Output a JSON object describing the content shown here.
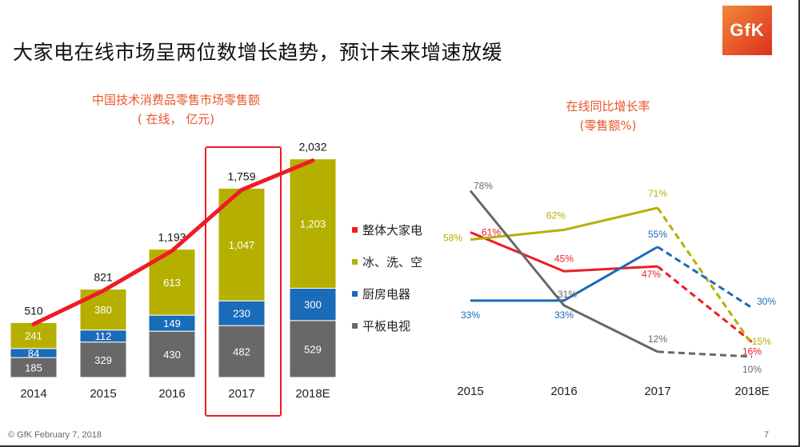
{
  "slide": {
    "title": "大家电在线市场呈两位数增长趋势，预计未来增速放缓",
    "logo_text": "GfK",
    "footer_left": "© GfK February 7, 2018",
    "page_number": "7"
  },
  "colors": {
    "total": "#ee1c25",
    "fridge_wash_ac": "#b5b000",
    "kitchen": "#1a6bb8",
    "tv": "#686868",
    "subtitle": "#e8552a"
  },
  "chart_data": [
    {
      "type": "bar",
      "stacked": true,
      "title": "中国技术消费品零售市场零售额",
      "subtitle": "( 在线， 亿元)",
      "categories": [
        "2014",
        "2015",
        "2016",
        "2017",
        "2018E"
      ],
      "series": [
        {
          "name": "平板电视",
          "values": [
            185,
            329,
            430,
            482,
            529
          ]
        },
        {
          "name": "厨房电器",
          "values": [
            84,
            112,
            149,
            230,
            300
          ]
        },
        {
          "name": "冰、洗、空",
          "values": [
            241,
            380,
            613,
            1047,
            1203
          ]
        }
      ],
      "totals": [
        510,
        821,
        1193,
        1759,
        2032
      ],
      "total_labels": [
        "510",
        "821",
        "1,193",
        "1,759",
        "2,032"
      ],
      "segment_labels": {
        "平板电视": [
          "185",
          "329",
          "430",
          "482",
          "529"
        ],
        "厨房电器": [
          "84",
          "112",
          "149",
          "230",
          "300"
        ],
        "冰、洗、空": [
          "241",
          "380",
          "613",
          "1,047",
          "1,203"
        ]
      },
      "overlay_line": {
        "name": "整体大家电",
        "values": [
          510,
          821,
          1193,
          1759,
          2032
        ]
      },
      "highlighted_category": "2017",
      "grid": false
    },
    {
      "type": "line",
      "title": "在线同比增长率",
      "subtitle": "(零售额%)",
      "categories": [
        "2015",
        "2016",
        "2017",
        "2018E"
      ],
      "forecast_from": "2017",
      "series": [
        {
          "name": "整体大家电",
          "values": [
            61,
            45,
            47,
            16
          ],
          "labels": [
            "61%",
            "45%",
            "47%",
            "16%"
          ]
        },
        {
          "name": "冰、洗、空",
          "values": [
            58,
            62,
            71,
            15
          ],
          "labels": [
            "58%",
            "62%",
            "71%",
            "15%"
          ]
        },
        {
          "name": "厨房电器",
          "values": [
            33,
            33,
            55,
            30
          ],
          "labels": [
            "33%",
            "33%",
            "55%",
            "30%"
          ]
        },
        {
          "name": "平板电视",
          "values": [
            78,
            31,
            12,
            10
          ],
          "labels": [
            "78%",
            "31%",
            "12%",
            "10%"
          ]
        }
      ],
      "grid": false
    }
  ],
  "legend": [
    {
      "label": "整体大家电",
      "color_key": "total"
    },
    {
      "label": "冰、洗、空",
      "color_key": "fridge_wash_ac"
    },
    {
      "label": "厨房电器",
      "color_key": "kitchen"
    },
    {
      "label": "平板电视",
      "color_key": "tv"
    }
  ]
}
